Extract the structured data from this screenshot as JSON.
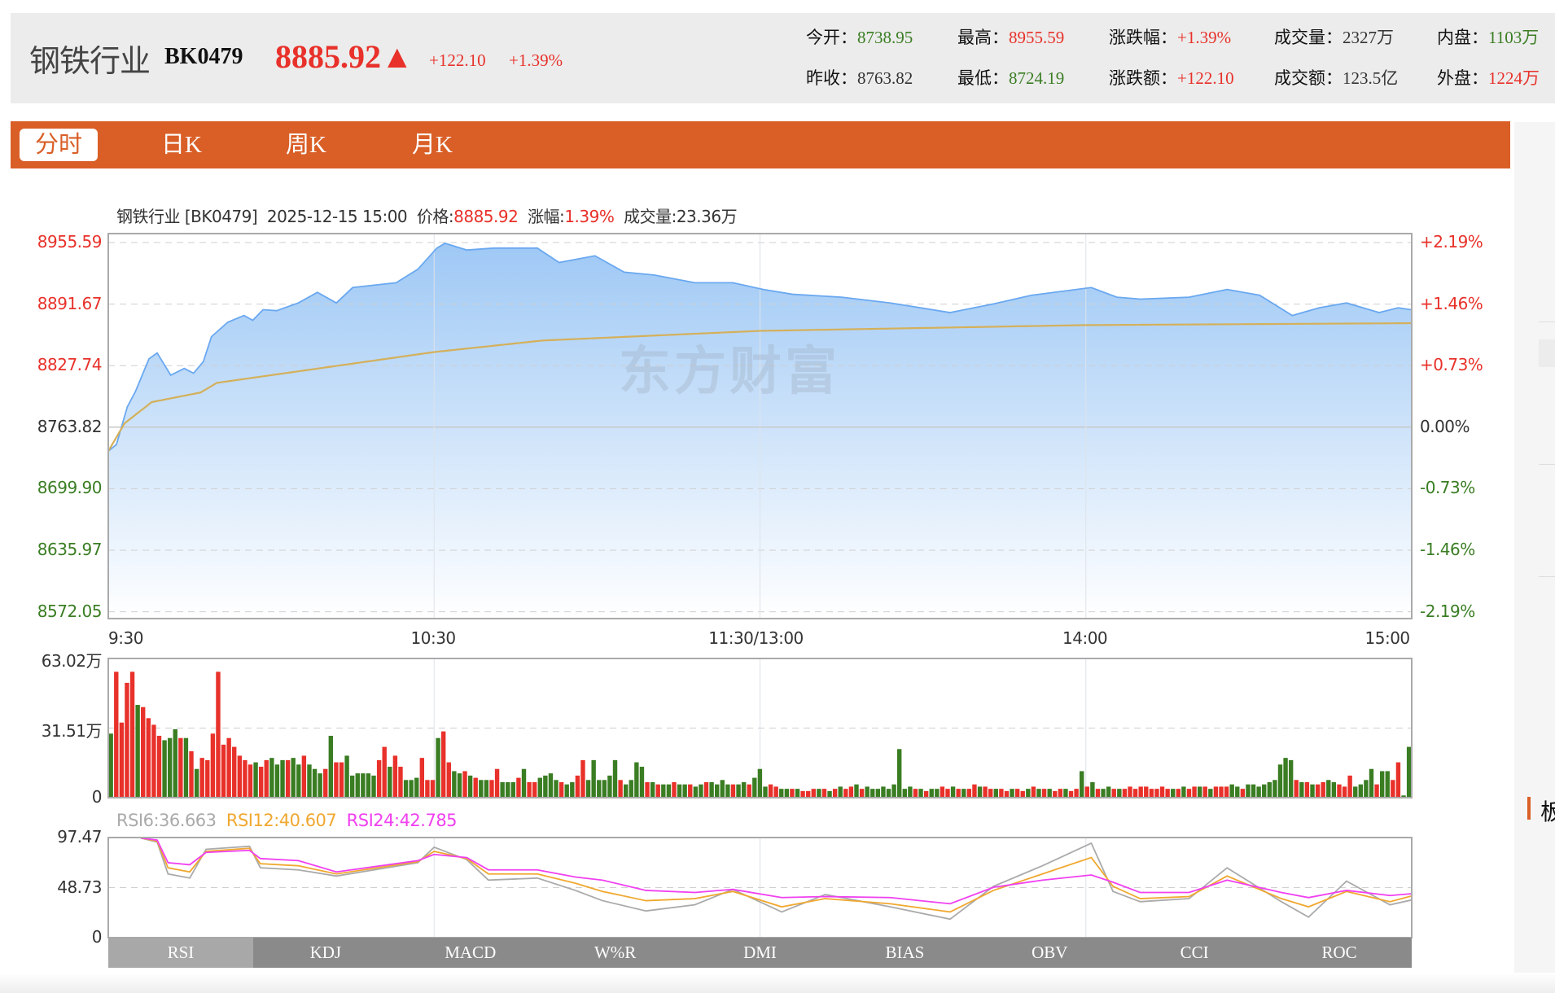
{
  "header": {
    "title": "钢铁行业",
    "code": "BK0479",
    "price": "8885.92▲",
    "change": "+122.10",
    "change_pct": "+1.39%",
    "stats": [
      {
        "label": "今开：",
        "value": "8738.95",
        "color": "green"
      },
      {
        "label": "最高：",
        "value": "8955.59",
        "color": "red"
      },
      {
        "label": "涨跌幅：",
        "value": "+1.39%",
        "color": "red"
      },
      {
        "label": "成交量：",
        "value": "2327万",
        "color": "dark"
      },
      {
        "label": "内盘：",
        "value": "1103万",
        "color": "green"
      },
      {
        "label": "昨收：",
        "value": "8763.82",
        "color": "dark"
      },
      {
        "label": "最低：",
        "value": "8724.19",
        "color": "green"
      },
      {
        "label": "涨跌额：",
        "value": "+122.10",
        "color": "red"
      },
      {
        "label": "成交额：",
        "value": "123.5亿",
        "color": "dark"
      },
      {
        "label": "外盘：",
        "value": "1224万",
        "color": "red"
      }
    ]
  },
  "tabs": [
    {
      "label": "分时",
      "active": true
    },
    {
      "label": "日K",
      "active": false
    },
    {
      "label": "周K",
      "active": false
    },
    {
      "label": "月K",
      "active": false
    }
  ],
  "side": {
    "section_char": "板"
  },
  "info": {
    "name": "钢铁行业 [BK0479]",
    "time": "2025-12-15 15:00",
    "price_label": "价格:",
    "price": "8885.92",
    "pct_label": "涨幅:",
    "pct": "1.39%",
    "vol": "成交量:23.36万"
  },
  "watermark": "东方财富",
  "colors": {
    "up": "#e8312a",
    "down": "#3a7d23",
    "price_line": "#6aa8f0",
    "avg_line": "#d4b05a",
    "rsi6": "#aaaaaa",
    "rsi12": "#f0a830",
    "rsi24": "#f040f0",
    "accent": "#d95f27"
  },
  "chart_data": [
    {
      "type": "area",
      "yticks_left": [
        "8955.59",
        "8891.67",
        "8827.74",
        "8763.82",
        "8699.90",
        "8635.97",
        "8572.05"
      ],
      "yticks_right": [
        "+2.19%",
        "+1.46%",
        "+0.73%",
        "0.00%",
        "-0.73%",
        "-1.46%",
        "-2.19%"
      ],
      "xticks": [
        "9:30",
        "10:30",
        "11:30/13:00",
        "14:00",
        "15:00"
      ],
      "ylim": [
        8572.05,
        8955.59
      ],
      "prev_close": 8763.82,
      "minutes": 240,
      "price_points": [
        [
          0,
          8739
        ],
        [
          1.5,
          8746
        ],
        [
          3.5,
          8785
        ],
        [
          5,
          8801
        ],
        [
          7.5,
          8835
        ],
        [
          9,
          8841
        ],
        [
          11.5,
          8818
        ],
        [
          14,
          8825
        ],
        [
          15.7,
          8820
        ],
        [
          17.5,
          8832
        ],
        [
          19,
          8858
        ],
        [
          22,
          8873
        ],
        [
          25,
          8880
        ],
        [
          26.6,
          8875
        ],
        [
          28.5,
          8886
        ],
        [
          31,
          8885
        ],
        [
          35,
          8893
        ],
        [
          38.5,
          8904
        ],
        [
          42,
          8893
        ],
        [
          45,
          8909
        ],
        [
          53,
          8914
        ],
        [
          57,
          8928
        ],
        [
          60.5,
          8950
        ],
        [
          62,
          8955
        ],
        [
          66,
          8948
        ],
        [
          71,
          8950
        ],
        [
          79,
          8950
        ],
        [
          83,
          8935
        ],
        [
          89.6,
          8942
        ],
        [
          95,
          8925
        ],
        [
          100.5,
          8922
        ],
        [
          108,
          8914
        ],
        [
          115,
          8914
        ],
        [
          120.6,
          8907
        ],
        [
          126,
          8902
        ],
        [
          135,
          8899
        ],
        [
          144,
          8893
        ],
        [
          155,
          8883
        ],
        [
          163,
          8892
        ],
        [
          170,
          8901
        ],
        [
          181,
          8909
        ],
        [
          185.7,
          8899
        ],
        [
          190,
          8897
        ],
        [
          199,
          8899
        ],
        [
          206,
          8907
        ],
        [
          212,
          8901
        ],
        [
          218,
          8880
        ],
        [
          223,
          8888
        ],
        [
          228,
          8893
        ],
        [
          234,
          8883
        ],
        [
          237.5,
          8888
        ],
        [
          240,
          8885.92
        ]
      ],
      "avg_points": [
        [
          0,
          8739
        ],
        [
          3,
          8768
        ],
        [
          8,
          8790
        ],
        [
          17,
          8800
        ],
        [
          20,
          8810
        ],
        [
          40,
          8826
        ],
        [
          60,
          8842
        ],
        [
          80,
          8854
        ],
        [
          120,
          8864
        ],
        [
          180,
          8870
        ],
        [
          240,
          8872
        ]
      ]
    },
    {
      "type": "bar",
      "yticks": [
        "63.02万",
        "31.51万",
        "0"
      ],
      "ylim": [
        0,
        63.02
      ],
      "unit": "万",
      "volumes_signed": [
        -29,
        57,
        34,
        52,
        57,
        -42,
        41,
        36,
        33,
        28,
        -26,
        -27,
        -31,
        27,
        -27,
        21,
        -13,
        18,
        17,
        29,
        57,
        24,
        27,
        23,
        19,
        17,
        15,
        -16,
        14,
        17,
        -18,
        -15,
        -17,
        17,
        -18,
        -15,
        19,
        -15,
        -13,
        -11,
        13,
        -28,
        16,
        16,
        -19,
        -10,
        -11,
        -11,
        -11,
        -10,
        17,
        23,
        -14,
        19,
        14,
        -8,
        -8,
        -9,
        18,
        8,
        8,
        -27,
        30,
        16,
        -12,
        -11,
        12,
        -10,
        9,
        -8,
        -8,
        8,
        13,
        -7,
        -7,
        -7,
        9,
        -13,
        7,
        7,
        -9,
        -10,
        -11,
        -8,
        7,
        -6,
        -7,
        10,
        17,
        -8,
        -17,
        -8,
        -8,
        -10,
        -17,
        8,
        -6,
        -8,
        -16,
        -14,
        7,
        -7,
        6,
        -6,
        -6,
        7,
        -6,
        -6,
        6,
        -5,
        -6,
        7,
        -7,
        -6,
        -8,
        -6,
        6,
        -6,
        -7,
        6,
        -9,
        -13,
        -5,
        6,
        5,
        -4,
        -4,
        4,
        -4,
        3,
        3,
        4,
        -4,
        4,
        -3,
        4,
        -5,
        4,
        5,
        -6,
        4,
        -5,
        -4,
        -4,
        -5,
        -4,
        -6,
        -22,
        -4,
        -5,
        4,
        -4,
        3,
        -4,
        -4,
        5,
        4,
        -5,
        4,
        -4,
        4,
        6,
        -5,
        5,
        4,
        -4,
        4,
        3,
        -4,
        4,
        3,
        -4,
        5,
        -4,
        4,
        -4,
        3,
        4,
        -4,
        3,
        4,
        -12,
        5,
        -7,
        4,
        -4,
        -5,
        4,
        -4,
        4,
        5,
        4,
        5,
        5,
        4,
        4,
        5,
        4,
        -4,
        4,
        -5,
        4,
        5,
        -5,
        5,
        -4,
        5,
        5,
        5,
        -6,
        -5,
        4,
        -6,
        -6,
        -5,
        -6,
        -7,
        -8,
        -15,
        -18,
        -17,
        8,
        -7,
        7,
        -6,
        6,
        7,
        -8,
        -7,
        6,
        5,
        10,
        -5,
        -6,
        -8,
        -13,
        6,
        -12,
        -12,
        8,
        16,
        -1,
        -23
      ]
    },
    {
      "type": "line",
      "legend": [
        {
          "name": "RSI6:36.663"
        },
        {
          "name": "RSI12:40.607"
        },
        {
          "name": "RSI24:42.785"
        }
      ],
      "yticks": [
        "97.47",
        "48.73",
        "0"
      ],
      "ylim": [
        0,
        97.47
      ],
      "x": [
        6,
        9,
        11,
        15,
        18,
        26,
        28,
        35,
        42,
        57,
        60,
        66,
        70,
        79,
        86,
        91,
        99,
        108,
        115,
        124,
        132,
        144,
        155,
        163,
        172,
        181,
        185,
        190,
        199,
        206,
        216,
        221,
        228,
        236,
        240
      ],
      "series": [
        {
          "name": "RSI6",
          "values": [
            97,
            93,
            62,
            58,
            86,
            89,
            68,
            66,
            60,
            73,
            88,
            76,
            56,
            58,
            46,
            36,
            26,
            32,
            47,
            25,
            42,
            30,
            18,
            50,
            70,
            92,
            45,
            35,
            38,
            68,
            35,
            20,
            55,
            32,
            36.7
          ]
        },
        {
          "name": "RSI12",
          "values": [
            97,
            94,
            68,
            64,
            84,
            87,
            72,
            70,
            62,
            74,
            84,
            77,
            62,
            62,
            53,
            45,
            36,
            38,
            45,
            30,
            38,
            33,
            25,
            46,
            62,
            78,
            50,
            38,
            40,
            60,
            38,
            30,
            45,
            35,
            40.6
          ]
        },
        {
          "name": "RSI24",
          "values": [
            97,
            95,
            73,
            71,
            83,
            85,
            77,
            75,
            64,
            75,
            81,
            78,
            66,
            66,
            59,
            56,
            46,
            44,
            47,
            39,
            40,
            39,
            33,
            49,
            56,
            61,
            54,
            44,
            44,
            56,
            44,
            39,
            46,
            41,
            42.8
          ]
        }
      ]
    }
  ],
  "indicator_tabs": [
    {
      "label": "RSI",
      "active": true
    },
    {
      "label": "KDJ"
    },
    {
      "label": "MACD"
    },
    {
      "label": "W%R"
    },
    {
      "label": "DMI"
    },
    {
      "label": "BIAS"
    },
    {
      "label": "OBV"
    },
    {
      "label": "CCI"
    },
    {
      "label": "ROC"
    }
  ]
}
